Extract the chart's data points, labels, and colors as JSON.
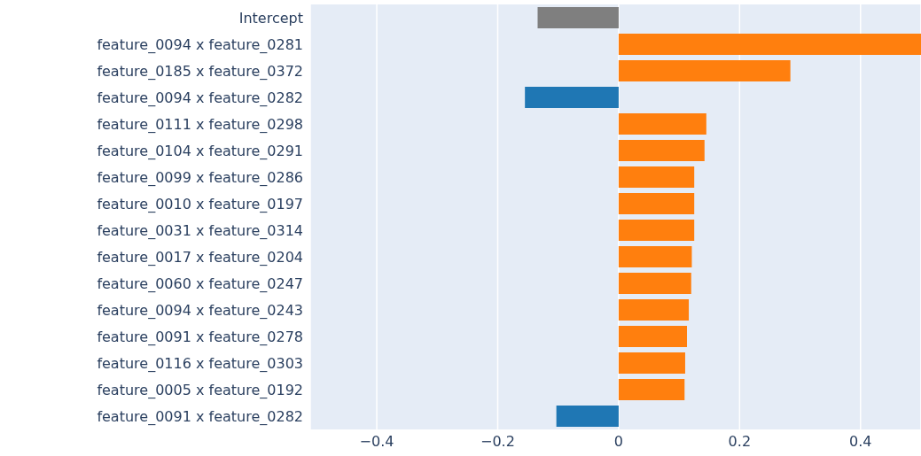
{
  "chart_data": {
    "type": "bar",
    "orientation": "horizontal",
    "categories": [
      "Intercept",
      "feature_0094 x feature_0281",
      "feature_0185 x feature_0372",
      "feature_0094 x feature_0282",
      "feature_0111 x feature_0298",
      "feature_0104 x feature_0291",
      "feature_0099 x feature_0286",
      "feature_0010 x feature_0197",
      "feature_0031 x feature_0314",
      "feature_0017 x feature_0204",
      "feature_0060 x feature_0247",
      "feature_0094 x feature_0243",
      "feature_0091 x feature_0278",
      "feature_0116 x feature_0303",
      "feature_0005 x feature_0192",
      "feature_0091 x feature_0282"
    ],
    "values": [
      -0.134,
      0.5,
      0.284,
      -0.155,
      0.145,
      0.142,
      0.125,
      0.125,
      0.125,
      0.121,
      0.12,
      0.116,
      0.113,
      0.11,
      0.109,
      -0.103
    ],
    "colors": [
      "#7f7f7f",
      "#ff7f0e",
      "#ff7f0e",
      "#1f77b4",
      "#ff7f0e",
      "#ff7f0e",
      "#ff7f0e",
      "#ff7f0e",
      "#ff7f0e",
      "#ff7f0e",
      "#ff7f0e",
      "#ff7f0e",
      "#ff7f0e",
      "#ff7f0e",
      "#ff7f0e",
      "#1f77b4"
    ],
    "xlim": [
      -0.51,
      0.5
    ],
    "xticks": [
      -0.4,
      -0.2,
      0,
      0.2,
      0.4
    ],
    "grid": "x"
  }
}
